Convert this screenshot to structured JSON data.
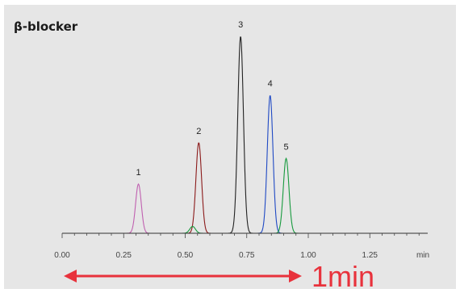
{
  "chart_data": {
    "type": "line",
    "title": "β-blocker",
    "xlabel": "min",
    "xlim": [
      0,
      1.5
    ],
    "x_ticks": [
      "0.00",
      "0.25",
      "0.50",
      "0.75",
      "1.00",
      "1.25"
    ],
    "grid": false,
    "series": [
      {
        "color": "#c060b0",
        "peaks": [
          {
            "x": 0.31,
            "height": 0.25
          }
        ]
      },
      {
        "color": "#8b1a1a",
        "peaks": [
          {
            "x": 0.555,
            "height": 0.46
          }
        ]
      },
      {
        "color": "#222222",
        "peaks": [
          {
            "x": 0.725,
            "height": 1.0
          }
        ]
      },
      {
        "color": "#1f49c4",
        "peaks": [
          {
            "x": 0.845,
            "height": 0.7
          }
        ]
      },
      {
        "color": "#179a3e",
        "peaks": [
          {
            "x": 0.53,
            "height": 0.035
          },
          {
            "x": 0.91,
            "height": 0.38
          }
        ]
      }
    ],
    "peak_labels": [
      {
        "text": "1",
        "x": 0.31,
        "height": 0.25
      },
      {
        "text": "2",
        "x": 0.555,
        "height": 0.46
      },
      {
        "text": "3",
        "x": 0.725,
        "height": 1.0
      },
      {
        "text": "4",
        "x": 0.845,
        "height": 0.7
      },
      {
        "text": "5",
        "x": 0.91,
        "height": 0.38
      }
    ],
    "annotation": {
      "text": "1min",
      "from": 0.0,
      "to": 1.0,
      "color": "#e8323c"
    }
  }
}
